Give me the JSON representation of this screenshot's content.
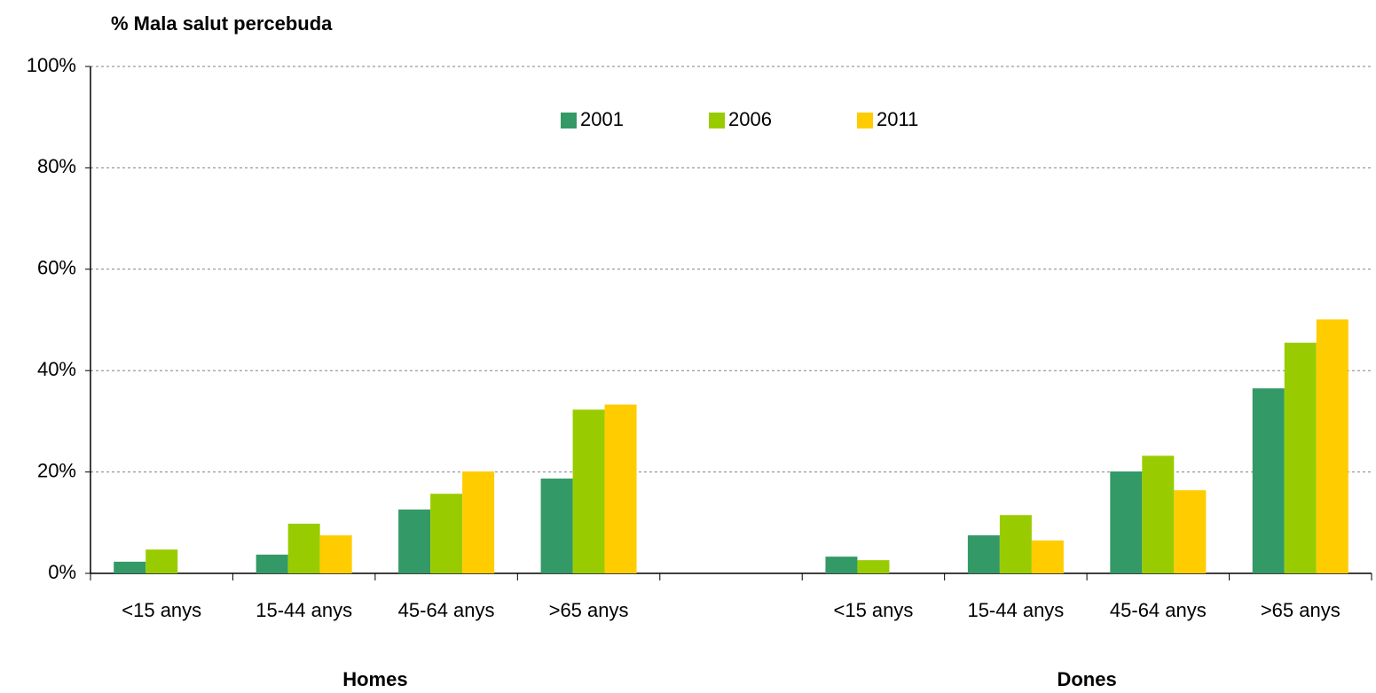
{
  "chart_data": {
    "type": "bar",
    "title": "% Mala salut percebuda",
    "categories": [
      "<15 anys",
      "15-44 anys",
      "45-64 anys",
      ">65 anys",
      null,
      "<15 anys",
      "15-44 anys",
      "45-64 anys",
      ">65 anys"
    ],
    "group_labels": [
      "Homes",
      "Dones"
    ],
    "series": [
      {
        "name": "2001",
        "color": "#339966",
        "values": [
          2.3,
          3.7,
          12.6,
          18.7,
          null,
          3.3,
          7.5,
          20.1,
          36.5
        ]
      },
      {
        "name": "2006",
        "color": "#99cc00",
        "values": [
          4.7,
          9.8,
          15.7,
          32.3,
          null,
          2.6,
          11.5,
          23.2,
          45.5
        ]
      },
      {
        "name": "2011",
        "color": "#ffcc00",
        "values": [
          null,
          7.5,
          20.1,
          33.3,
          null,
          null,
          6.5,
          16.4,
          50.1
        ]
      }
    ],
    "ylim": [
      0,
      100
    ],
    "yticks": [
      {
        "value": 0,
        "label": "0%"
      },
      {
        "value": 20,
        "label": "20%"
      },
      {
        "value": 40,
        "label": "40%"
      },
      {
        "value": 60,
        "label": "60%"
      },
      {
        "value": 80,
        "label": "80%"
      },
      {
        "value": 100,
        "label": "100%"
      }
    ],
    "grid": true,
    "legend": "top"
  }
}
